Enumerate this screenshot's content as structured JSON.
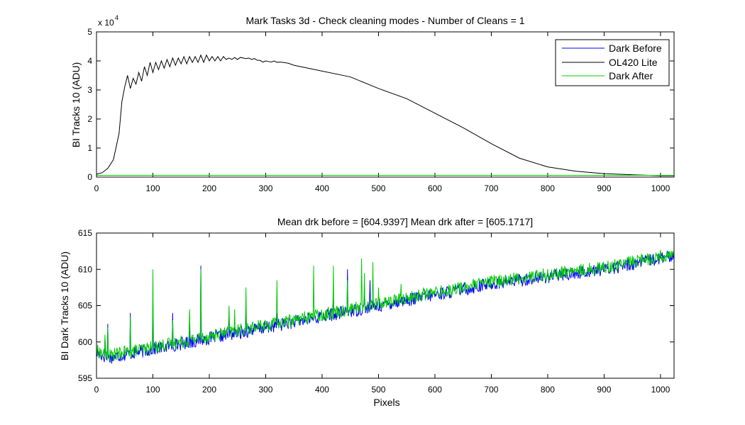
{
  "chart_data": [
    {
      "type": "line",
      "title": "Mark Tasks 3d - Check cleaning modes - Number of Cleans = 1",
      "xlabel": "",
      "ylabel": "BI Tracks 10 (ADU)",
      "exponent_label": "x 10",
      "exponent_power": "4",
      "xlim": [
        0,
        1024
      ],
      "ylim": [
        0,
        5
      ],
      "xticks": [
        0,
        100,
        200,
        300,
        400,
        500,
        600,
        700,
        800,
        900,
        1000
      ],
      "yticks": [
        0,
        1,
        2,
        3,
        4,
        5
      ],
      "legend_position": "top-right",
      "series": [
        {
          "name": "Dark Before",
          "color": "#0000ff",
          "x": [
            0,
            1024
          ],
          "y": [
            0.06,
            0.06
          ]
        },
        {
          "name": "OL420 Lite",
          "color": "#000000",
          "x": [
            0,
            10,
            20,
            30,
            40,
            45,
            50,
            55,
            60,
            65,
            70,
            75,
            80,
            85,
            90,
            95,
            100,
            105,
            110,
            115,
            120,
            125,
            130,
            135,
            140,
            145,
            150,
            155,
            160,
            165,
            170,
            175,
            180,
            185,
            190,
            195,
            200,
            205,
            210,
            215,
            220,
            225,
            230,
            235,
            240,
            245,
            250,
            255,
            260,
            265,
            270,
            275,
            280,
            285,
            290,
            295,
            300,
            305,
            310,
            315,
            320,
            325,
            330,
            340,
            350,
            375,
            400,
            450,
            500,
            550,
            600,
            650,
            700,
            750,
            800,
            850,
            900,
            950,
            1000,
            1024
          ],
          "y": [
            0.1,
            0.15,
            0.3,
            0.6,
            1.5,
            2.6,
            3.1,
            3.5,
            3.05,
            3.4,
            3.2,
            3.6,
            3.3,
            3.8,
            3.5,
            3.95,
            3.6,
            3.95,
            3.7,
            4.0,
            3.75,
            4.05,
            3.8,
            4.1,
            3.85,
            4.1,
            3.9,
            4.15,
            3.9,
            4.15,
            3.95,
            4.15,
            3.95,
            4.2,
            3.95,
            4.2,
            4.0,
            4.15,
            4.0,
            4.15,
            4.0,
            4.15,
            4.05,
            4.1,
            4.05,
            4.12,
            4.05,
            4.12,
            4.1,
            4.08,
            4.1,
            4.05,
            4.08,
            4.02,
            4.02,
            3.96,
            4.0,
            3.98,
            3.96,
            4.0,
            3.95,
            3.96,
            3.95,
            3.92,
            3.85,
            3.75,
            3.65,
            3.45,
            3.05,
            2.7,
            2.2,
            1.7,
            1.15,
            0.65,
            0.35,
            0.2,
            0.12,
            0.08,
            0.05,
            0.05
          ]
        },
        {
          "name": "Dark After",
          "color": "#00cc00",
          "x": [
            0,
            1024
          ],
          "y": [
            0.06,
            0.06
          ]
        }
      ]
    },
    {
      "type": "line",
      "title": "Mean drk before = [604.9397]    Mean drk after = [605.1717]",
      "xlabel": "Pixels",
      "ylabel": "BI Dark Tracks 10 (ADU)",
      "xlim": [
        0,
        1024
      ],
      "ylim": [
        595,
        615
      ],
      "xticks": [
        0,
        100,
        200,
        300,
        400,
        500,
        600,
        700,
        800,
        900,
        1000
      ],
      "yticks": [
        595,
        600,
        605,
        610,
        615
      ],
      "series": [
        {
          "name": "Dark Before",
          "color": "#0000ff",
          "trend": [
            [
              0,
              598.5
            ],
            [
              20,
              597.8
            ],
            [
              100,
              599.0
            ],
            [
              200,
              600.5
            ],
            [
              300,
              602.0
            ],
            [
              400,
              603.5
            ],
            [
              500,
              605.0
            ],
            [
              600,
              606.5
            ],
            [
              700,
              608.0
            ],
            [
              800,
              609.0
            ],
            [
              900,
              610.0
            ],
            [
              1000,
              611.5
            ],
            [
              1024,
              611.8
            ]
          ],
          "noise": 0.9,
          "spikes": [
            [
              15,
              600.5
            ],
            [
              20,
              602.5
            ],
            [
              60,
              604.0
            ],
            [
              100,
              605.5
            ],
            [
              135,
              604.0
            ],
            [
              165,
              604.0
            ],
            [
              185,
              610.5
            ],
            [
              235,
              604.5
            ],
            [
              265,
              604.5
            ],
            [
              320,
              604.0
            ],
            [
              420,
              606.5
            ],
            [
              445,
              610.0
            ],
            [
              475,
              607.5
            ],
            [
              485,
              608.5
            ],
            [
              535,
              606.0
            ]
          ]
        },
        {
          "name": "Dark After",
          "color": "#00cc00",
          "trend": [
            [
              0,
              598.8
            ],
            [
              20,
              598.1
            ],
            [
              100,
              599.3
            ],
            [
              200,
              600.8
            ],
            [
              300,
              602.3
            ],
            [
              400,
              603.8
            ],
            [
              500,
              605.3
            ],
            [
              600,
              606.8
            ],
            [
              700,
              608.3
            ],
            [
              800,
              609.3
            ],
            [
              900,
              610.3
            ],
            [
              1000,
              611.8
            ],
            [
              1024,
              612.0
            ]
          ],
          "noise": 0.9,
          "spikes": [
            [
              15,
              601.0
            ],
            [
              20,
              602.0
            ],
            [
              60,
              603.5
            ],
            [
              100,
              610.0
            ],
            [
              135,
              603.0
            ],
            [
              165,
              604.5
            ],
            [
              185,
              610.0
            ],
            [
              235,
              605.0
            ],
            [
              245,
              604.5
            ],
            [
              265,
              607.5
            ],
            [
              320,
              608.5
            ],
            [
              380,
              604.0
            ],
            [
              385,
              610.5
            ],
            [
              420,
              610.5
            ],
            [
              445,
              608.5
            ],
            [
              470,
              611.5
            ],
            [
              475,
              609.5
            ],
            [
              490,
              611.0
            ],
            [
              500,
              607.5
            ],
            [
              540,
              608.0
            ],
            [
              580,
              607.5
            ],
            [
              620,
              606.5
            ]
          ]
        }
      ]
    }
  ]
}
